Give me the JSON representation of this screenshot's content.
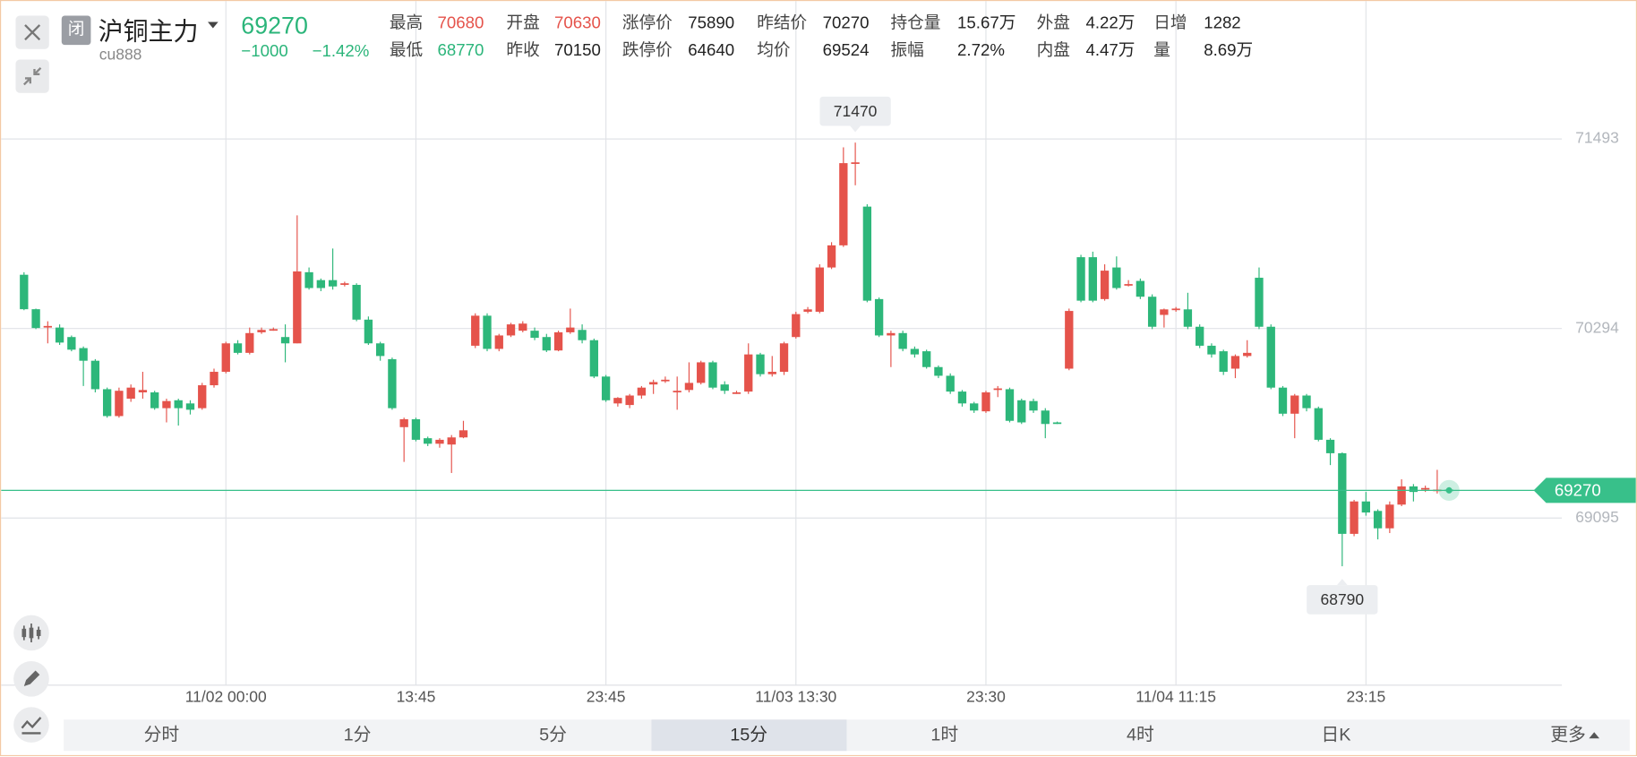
{
  "header": {
    "status": "闭",
    "title": "沪铜主力",
    "symbol": "cu888",
    "price": 69270,
    "change": "−1000",
    "change_pct": "−1.42%",
    "price_color": "#2bb57a",
    "stats": [
      [
        {
          "label": "最高",
          "value": 70680,
          "color": "#e5534b"
        },
        {
          "label": "开盘",
          "value": 70630,
          "color": "#e5534b"
        },
        {
          "label": "涨停价",
          "value": 75890
        },
        {
          "label": "昨结价",
          "value": 70270
        },
        {
          "label": "持仓量",
          "value": "15.67万"
        },
        {
          "label": "外盘",
          "value": "4.22万"
        },
        {
          "label": "日增",
          "value": 1282
        }
      ],
      [
        {
          "label": "最低",
          "value": 68770,
          "color": "#2bb57a"
        },
        {
          "label": "昨收",
          "value": 70150
        },
        {
          "label": "跌停价",
          "value": 64640
        },
        {
          "label": "均价",
          "value": 69524
        },
        {
          "label": "振幅",
          "value": "2.72%"
        },
        {
          "label": "内盘",
          "value": "4.47万"
        },
        {
          "label": "量",
          "value": "8.69万"
        }
      ]
    ]
  },
  "tabs": [
    {
      "label": "分时"
    },
    {
      "label": "1分"
    },
    {
      "label": "5分"
    },
    {
      "label": "15分",
      "active": true
    },
    {
      "label": "1时"
    },
    {
      "label": "4时"
    },
    {
      "label": "日K"
    },
    {
      "label": "更多"
    }
  ],
  "chart_data": {
    "type": "candlestick",
    "up_color": "#e5534b",
    "down_color": "#2db77a",
    "grid": true,
    "ylim": [
      68038,
      72002
    ],
    "yticks": [
      69095,
      70294,
      71493
    ],
    "last_price": 69270,
    "last_price_color": "#38c08a",
    "extremes": {
      "high": 71470,
      "low": 68790
    },
    "categories": [
      null,
      null,
      null,
      null,
      null,
      null,
      null,
      null,
      null,
      null,
      null,
      null,
      null,
      null,
      null,
      null,
      null,
      "11/02 00:00",
      null,
      null,
      null,
      null,
      null,
      null,
      null,
      null,
      null,
      null,
      null,
      null,
      null,
      null,
      null,
      "13:45",
      null,
      null,
      null,
      null,
      null,
      null,
      null,
      null,
      null,
      null,
      null,
      null,
      null,
      null,
      null,
      "23:45",
      null,
      null,
      null,
      null,
      null,
      null,
      null,
      null,
      null,
      null,
      null,
      null,
      null,
      null,
      null,
      "11/03 13:30",
      null,
      null,
      null,
      null,
      null,
      null,
      null,
      null,
      null,
      null,
      null,
      null,
      null,
      null,
      null,
      "23:30",
      null,
      null,
      null,
      null,
      null,
      null,
      null,
      null,
      null,
      null,
      null,
      null,
      null,
      null,
      null,
      "11/04 11:15",
      null,
      null,
      null,
      null,
      null,
      null,
      null,
      null,
      null,
      null,
      null,
      null,
      null,
      null,
      null,
      "23:15",
      null,
      null,
      null,
      null,
      null,
      null,
      null
    ],
    "open": [
      70634,
      70416,
      70300,
      70300,
      70240,
      70170,
      70090,
      69910,
      69740,
      69850,
      69890,
      69890,
      69790,
      69840,
      69820,
      69790,
      69935,
      70020,
      70200,
      70140,
      70270,
      70285,
      70240,
      70200,
      70650,
      70600,
      70600,
      70570,
      70570,
      70350,
      70200,
      70100,
      69670,
      69720,
      69600,
      69565,
      69560,
      69605,
      70185,
      70375,
      70165,
      70250,
      70280,
      70280,
      70240,
      70155,
      70270,
      70285,
      70220,
      69990,
      69820,
      69810,
      69870,
      69940,
      69960,
      69895,
      69905,
      69950,
      70080,
      69940,
      69885,
      69895,
      70130,
      70005,
      70020,
      70240,
      70400,
      70400,
      70680,
      70820,
      71340,
      71065,
      70480,
      70250,
      70265,
      70165,
      70150,
      70050,
      69995,
      69895,
      69820,
      69770,
      69910,
      69910,
      69840,
      69835,
      69775,
      69700,
      70040,
      70745,
      70745,
      70480,
      70680,
      70570,
      70595,
      70495,
      70380,
      70415,
      70415,
      70305,
      70185,
      70150,
      70040,
      70120,
      70615,
      70305,
      69920,
      69755,
      69870,
      69790,
      69590,
      69505,
      68995,
      69200,
      69140,
      69030,
      69180,
      69295,
      69280,
      69270,
      69275
    ],
    "high": [
      70650,
      70420,
      70340,
      70320,
      70250,
      70180,
      70100,
      69920,
      69920,
      69940,
      70020,
      69900,
      69850,
      69850,
      69840,
      69950,
      70040,
      70210,
      70220,
      70300,
      70300,
      70300,
      70320,
      71010,
      70680,
      70610,
      70800,
      70590,
      70580,
      70370,
      70210,
      70110,
      69730,
      69730,
      69610,
      69600,
      69620,
      69710,
      70390,
      70390,
      70260,
      70330,
      70340,
      70300,
      70260,
      70280,
      70420,
      70320,
      70230,
      70000,
      69860,
      69880,
      69930,
      69970,
      69990,
      69990,
      70080,
      70090,
      70090,
      69960,
      69900,
      70200,
      70140,
      70120,
      70210,
      70400,
      70430,
      70700,
      70840,
      71440,
      71470,
      71080,
      70490,
      70280,
      70280,
      70180,
      70160,
      70060,
      70010,
      69905,
      69830,
      69900,
      69930,
      69920,
      69850,
      69850,
      69790,
      69705,
      70420,
      70760,
      70780,
      70700,
      70750,
      70600,
      70610,
      70510,
      70420,
      70430,
      70520,
      70320,
      70200,
      70160,
      70130,
      70220,
      70680,
      70320,
      69930,
      69880,
      69880,
      69800,
      69600,
      69510,
      69210,
      69260,
      69150,
      69200,
      69340,
      69310,
      69300,
      69400,
      69290
    ],
    "low": [
      70410,
      70290,
      70200,
      70190,
      70150,
      69930,
      69890,
      69730,
      69730,
      69830,
      69850,
      69780,
      69700,
      69680,
      69750,
      69780,
      69920,
      70010,
      70130,
      70130,
      70260,
      70280,
      70080,
      70200,
      70540,
      70530,
      70540,
      70560,
      70340,
      70190,
      70090,
      69780,
      69450,
      69580,
      69550,
      69540,
      69380,
      69600,
      70170,
      70150,
      70150,
      70240,
      70270,
      70220,
      70145,
      70150,
      70260,
      70200,
      69980,
      69830,
      69800,
      69790,
      69850,
      69880,
      69950,
      69780,
      69890,
      69940,
      69910,
      69880,
      69880,
      69880,
      69990,
      69990,
      70000,
      70230,
      70390,
      70390,
      70670,
      70810,
      71200,
      70460,
      70240,
      70050,
      70150,
      70110,
      70040,
      69980,
      69880,
      69800,
      69760,
      69760,
      69860,
      69700,
      69690,
      69760,
      69600,
      69690,
      70030,
      70460,
      70460,
      70470,
      70540,
      70560,
      70480,
      70290,
      70300,
      70400,
      70290,
      70170,
      70110,
      70000,
      69980,
      70110,
      70290,
      69910,
      69740,
      69600,
      69770,
      69580,
      69430,
      68790,
      68980,
      69110,
      68960,
      69000,
      69170,
      69200,
      69260,
      69250,
      69260
    ],
    "close": [
      70416,
      70297,
      70310,
      70205,
      70160,
      70090,
      69910,
      69740,
      69900,
      69920,
      69905,
      69790,
      69835,
      69790,
      69780,
      69935,
      70020,
      70200,
      70140,
      70265,
      70285,
      70290,
      70200,
      70655,
      70550,
      70550,
      70560,
      70580,
      70350,
      70200,
      70120,
      69790,
      69720,
      69590,
      69565,
      69590,
      69605,
      69650,
      70375,
      70165,
      70250,
      70320,
      70325,
      70235,
      70155,
      70270,
      70300,
      70220,
      69990,
      69840,
      69855,
      69870,
      69920,
      69955,
      69970,
      69900,
      69950,
      70080,
      69920,
      69900,
      69890,
      70130,
      70005,
      70020,
      70200,
      70385,
      70415,
      70680,
      70820,
      71340,
      71345,
      70470,
      70250,
      70265,
      70165,
      70130,
      70050,
      69995,
      69895,
      69820,
      69775,
      69890,
      69915,
      69710,
      69700,
      69775,
      69690,
      69695,
      70405,
      70470,
      70470,
      70660,
      70550,
      70575,
      70495,
      70305,
      70415,
      70420,
      70305,
      70185,
      70130,
      70020,
      70120,
      70140,
      70305,
      69920,
      69755,
      69870,
      69790,
      69590,
      69505,
      68995,
      69200,
      69130,
      69030,
      69180,
      69295,
      69260,
      69285,
      69275,
      69270
    ]
  }
}
